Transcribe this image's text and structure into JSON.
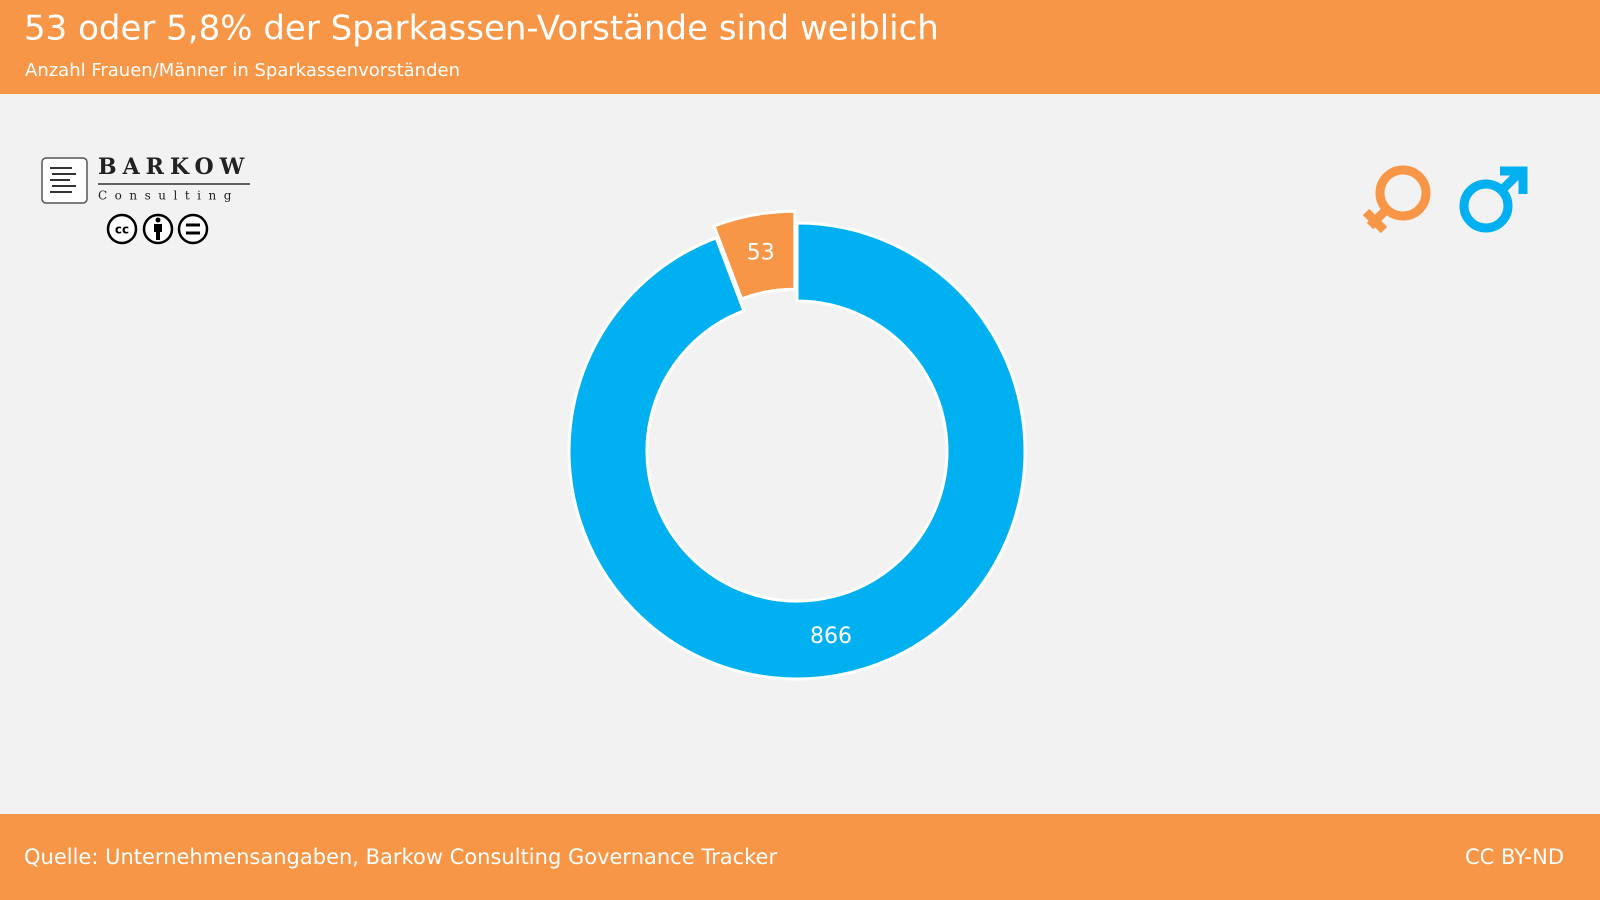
{
  "chart_data": {
    "type": "donut",
    "title": "53 oder 5,8% der Sparkassen-Vorstände sind weiblich",
    "subtitle": "Anzahl Frauen/Männer in Sparkassenvorständen",
    "categories": [
      null,
      null
    ],
    "values": [
      866,
      53
    ],
    "colors": [
      "#00b0f0",
      "#f79646"
    ],
    "source": "Quelle: Unternehmensangaben, Barkow Consulting Governance Tracker",
    "license": "CC BY-ND"
  },
  "logo": {
    "name": "BARKOW",
    "tagline": "Consulting"
  }
}
